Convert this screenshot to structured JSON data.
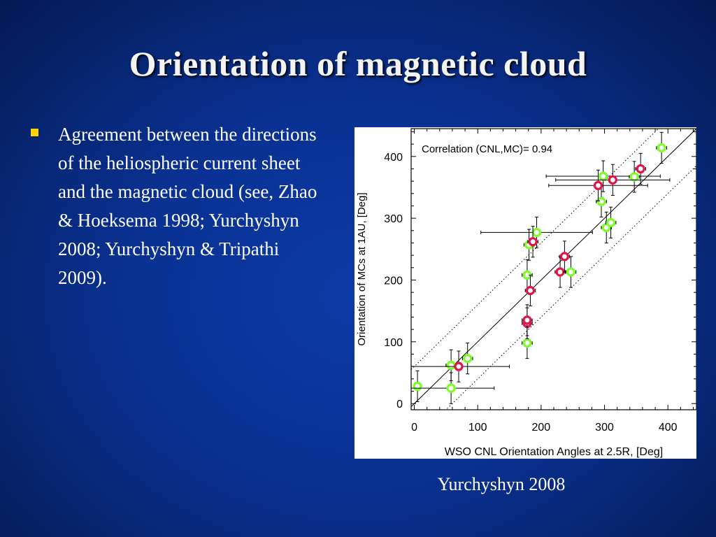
{
  "slide": {
    "title": "Orientation of magnetic cloud",
    "bullets": [
      "Agreement between the directions of the heliospheric current sheet and the magnetic cloud (see, Zhao & Hoeksema 1998; Yurchyshyn 2008; Yurchyshyn & Tripathi 2009)."
    ],
    "caption": "Yurchyshyn 2008",
    "bullet_color": "#ffd400"
  },
  "chart_data": {
    "type": "scatter",
    "title": "",
    "annotation": "Correlation (CNL,MC)= 0.94",
    "xlabel": "WSO CNL Orientation Angles at 2.5R, [Deg]",
    "ylabel": "Orientation of MCs at 1AU, [Deg]",
    "xlim": [
      -5,
      445
    ],
    "ylim": [
      -10,
      445
    ],
    "xticks": [
      0,
      100,
      200,
      300,
      400
    ],
    "yticks": [
      0,
      100,
      200,
      300,
      400
    ],
    "reference_lines": [
      {
        "style": "solid",
        "slope": 1,
        "intercept": 0
      },
      {
        "style": "dotted",
        "slope": 1,
        "intercept": 60
      },
      {
        "style": "dotted",
        "slope": 1,
        "intercept": -60
      }
    ],
    "colors": {
      "green": "#7cfc28",
      "red": "#e0164a",
      "error_bar": "#000000"
    },
    "series": [
      {
        "color_key": "green",
        "points": [
          {
            "x": 5,
            "y": 28,
            "xerr": 5,
            "yerr": 25
          },
          {
            "x": 58,
            "y": 25,
            "xerr": 68,
            "yerr": 25
          },
          {
            "x": 58,
            "y": 62,
            "xerr": 8,
            "yerr": 25
          },
          {
            "x": 84,
            "y": 73,
            "xerr": 8,
            "yerr": 25
          },
          {
            "x": 178,
            "y": 98,
            "xerr": 8,
            "yerr": 25
          },
          {
            "x": 178,
            "y": 208,
            "xerr": 8,
            "yerr": 25
          },
          {
            "x": 181,
            "y": 257,
            "xerr": 8,
            "yerr": 25
          },
          {
            "x": 193,
            "y": 277,
            "xerr": 88,
            "yerr": 25
          },
          {
            "x": 247,
            "y": 213,
            "xerr": 8,
            "yerr": 25
          },
          {
            "x": 295,
            "y": 327,
            "xerr": 8,
            "yerr": 25
          },
          {
            "x": 298,
            "y": 368,
            "xerr": 90,
            "yerr": 25
          },
          {
            "x": 303,
            "y": 285,
            "xerr": 8,
            "yerr": 25
          },
          {
            "x": 310,
            "y": 293,
            "xerr": 8,
            "yerr": 25
          },
          {
            "x": 347,
            "y": 367,
            "xerr": 8,
            "yerr": 25
          },
          {
            "x": 390,
            "y": 414,
            "xerr": 8,
            "yerr": 25
          }
        ]
      },
      {
        "color_key": "red",
        "points": [
          {
            "x": 70,
            "y": 60,
            "xerr": 80,
            "yerr": 25
          },
          {
            "x": 178,
            "y": 130,
            "xerr": 8,
            "yerr": 25
          },
          {
            "x": 178,
            "y": 135,
            "xerr": 8,
            "yerr": 25
          },
          {
            "x": 183,
            "y": 183,
            "xerr": 8,
            "yerr": 25
          },
          {
            "x": 187,
            "y": 262,
            "xerr": 8,
            "yerr": 25
          },
          {
            "x": 230,
            "y": 213,
            "xerr": 8,
            "yerr": 25
          },
          {
            "x": 237,
            "y": 238,
            "xerr": 8,
            "yerr": 25
          },
          {
            "x": 290,
            "y": 353,
            "xerr": 78,
            "yerr": 25
          },
          {
            "x": 313,
            "y": 362,
            "xerr": 90,
            "yerr": 25
          },
          {
            "x": 357,
            "y": 380,
            "xerr": 8,
            "yerr": 25
          }
        ]
      }
    ]
  }
}
